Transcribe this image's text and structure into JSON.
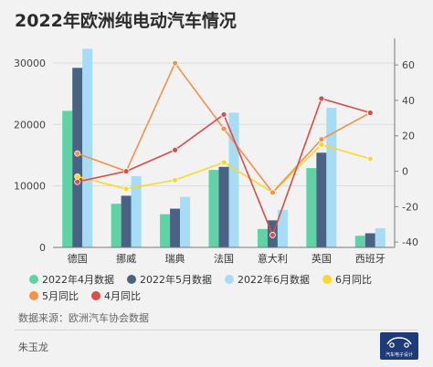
{
  "title": "2022年欧洲纯电动汽车情况",
  "source": "数据来源：欧洲汽车协会数据",
  "author": "朱玉龙",
  "logo_text": "汽车电子设计",
  "colors": {
    "apr_data": "#5fd3a6",
    "may_data": "#4a6283",
    "jun_data": "#a6dcf4",
    "jun_yoy": "#ffd52e",
    "may_yoy": "#f5924a",
    "apr_yoy": "#dd4b4b"
  },
  "legend": {
    "row1": [
      "2022年4月数据",
      "2022年5月数据",
      "2022年6月数据",
      "6月同比"
    ],
    "row2": [
      "5月同比",
      "4月同比"
    ]
  },
  "chart_data": {
    "type": "bar",
    "categories": [
      "德国",
      "挪威",
      "瑞典",
      "法国",
      "意大利",
      "英国",
      "西班牙"
    ],
    "y_left": {
      "ticks": [
        "0",
        "10000",
        "20000",
        "30000"
      ],
      "ylim": [
        0,
        34000
      ]
    },
    "y_right": {
      "ticks": [
        "-40",
        "-20",
        "0",
        "20",
        "40",
        "60"
      ],
      "ylim": [
        -43,
        75
      ]
    },
    "bar_series": [
      {
        "name": "2022年4月数据",
        "values": [
          22200,
          7100,
          5400,
          12600,
          3000,
          12900,
          1900
        ]
      },
      {
        "name": "2022年5月数据",
        "values": [
          29200,
          8400,
          6300,
          13100,
          4400,
          15400,
          2300
        ]
      },
      {
        "name": "2022年6月数据",
        "values": [
          32300,
          11600,
          8200,
          21900,
          6100,
          22700,
          3100
        ]
      }
    ],
    "line_series": [
      {
        "name": "6月同比",
        "values": [
          -3,
          -10,
          -5,
          5,
          -12,
          15,
          7
        ]
      },
      {
        "name": "5月同比",
        "values": [
          10,
          0,
          61,
          24,
          -12,
          18,
          33
        ]
      },
      {
        "name": "4月同比",
        "values": [
          -6,
          0,
          12,
          32,
          -36,
          41,
          33
        ]
      }
    ]
  }
}
